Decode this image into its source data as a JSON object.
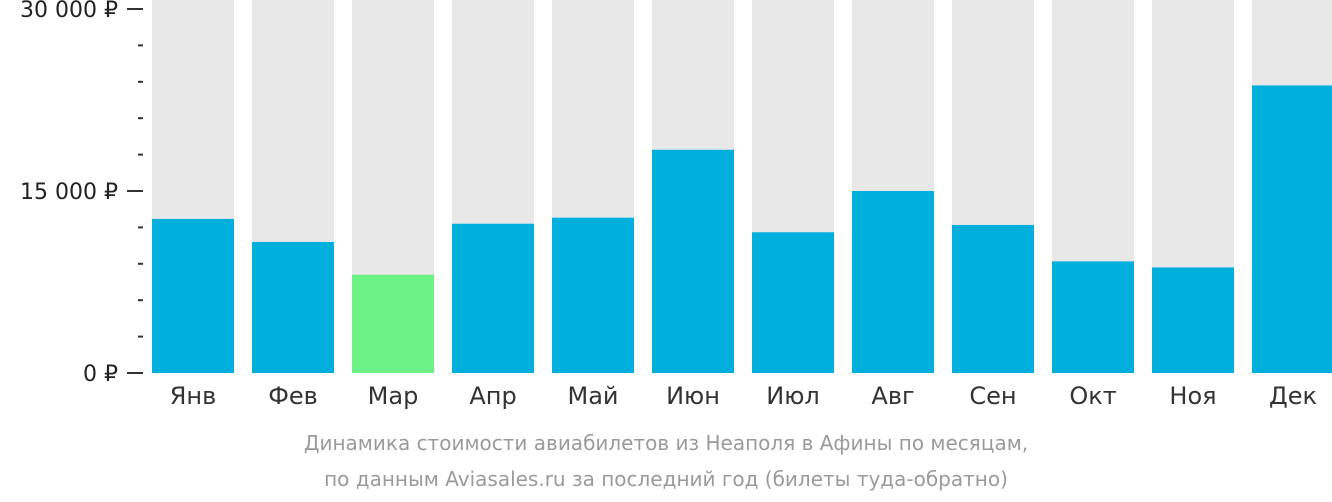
{
  "chart_data": {
    "type": "bar",
    "categories": [
      "Янв",
      "Фев",
      "Мар",
      "Апр",
      "Май",
      "Июн",
      "Июл",
      "Авг",
      "Сен",
      "Окт",
      "Ноя",
      "Дек"
    ],
    "values": [
      12700,
      10800,
      8100,
      12300,
      12800,
      18400,
      11600,
      15000,
      12200,
      9200,
      8700,
      23700
    ],
    "ylim": [
      0,
      30000
    ],
    "ytick_labels": [
      {
        "value": 30000,
        "label": "30 000 ₽"
      },
      {
        "value": 15000,
        "label": "15 000 ₽"
      },
      {
        "value": 0,
        "label": "0 ₽"
      }
    ],
    "minor_tick_step": 3000,
    "highlight_category": "Мар",
    "colors": {
      "bar": "#00afdb",
      "highlight": "#6cf187",
      "track": "#e8e8e8",
      "axis": "#333333"
    },
    "caption": [
      "Динамика стоимости авиабилетов из Неаполя в Афины по месяцам,",
      "по данным Aviasales.ru за последний год (билеты туда-обратно)"
    ]
  }
}
